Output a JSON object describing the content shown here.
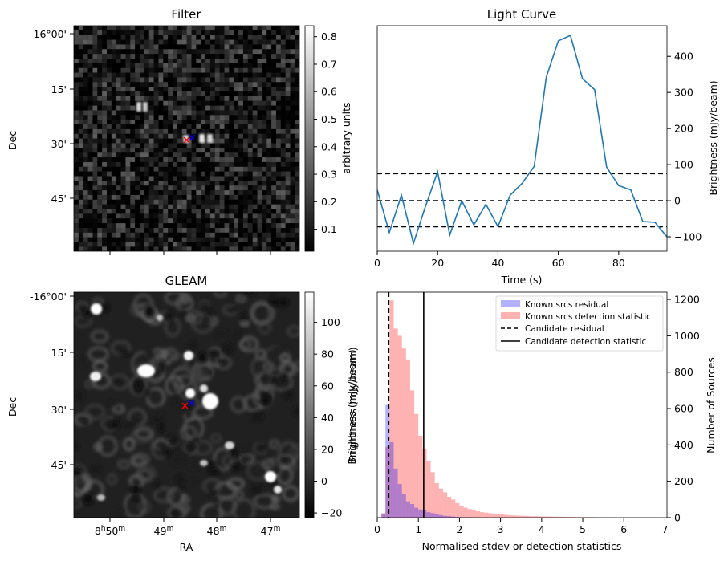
{
  "panels": {
    "filter": {
      "title": "Filter",
      "ylabel": "Dec",
      "dec_ticks": [
        "-16°00'",
        "15'",
        "30'",
        "45'"
      ],
      "colorbar": {
        "label": "arbitrary units",
        "range": [
          0.02,
          0.84
        ],
        "ticks": [
          "0.1",
          "0.2",
          "0.3",
          "0.4",
          "0.5",
          "0.6",
          "0.7",
          "0.8"
        ]
      }
    },
    "gleam": {
      "title": "GLEAM",
      "ylabel": "Dec",
      "xlabel": "RA",
      "dec_ticks": [
        "-16°00'",
        "15'",
        "30'",
        "45'"
      ],
      "ra_ticks": [
        "8h50m",
        "49m",
        "48m",
        "47m"
      ],
      "colorbar": {
        "label": "Brightness (mJy/beam)",
        "range": [
          -23,
          119
        ],
        "ticks": [
          "−20",
          "0",
          "20",
          "40",
          "60",
          "80",
          "100"
        ]
      }
    },
    "marker_colors": {
      "red_x": "#ff0000",
      "blue_x": "#0000ff"
    }
  },
  "chart_data": [
    {
      "type": "line",
      "title": "Light Curve",
      "xlabel": "Time (s)",
      "ylabel": "Brightness (mJy/beam)",
      "xlim": [
        0,
        96
      ],
      "ylim": [
        -140,
        485
      ],
      "xticks": [
        0,
        20,
        40,
        60,
        80
      ],
      "yticks": [
        -100,
        0,
        100,
        200,
        300,
        400
      ],
      "y_axis_side": "right",
      "color": "#1f77b4",
      "x": [
        0,
        4,
        8,
        12,
        16,
        20,
        24,
        28,
        32,
        36,
        40,
        44,
        48,
        52,
        56,
        60,
        64,
        68,
        72,
        76,
        80,
        84,
        88,
        92,
        96
      ],
      "y": [
        30,
        -88,
        15,
        -118,
        -15,
        80,
        -95,
        0,
        -67,
        -10,
        -72,
        15,
        48,
        95,
        342,
        443,
        458,
        338,
        308,
        93,
        42,
        30,
        -58,
        -60,
        -100
      ],
      "hlines": [
        {
          "y": 75,
          "style": "dashed",
          "color": "#000000"
        },
        {
          "y": 0,
          "style": "dashed",
          "color": "#000000"
        },
        {
          "y": -72,
          "style": "dashed",
          "color": "#000000"
        }
      ]
    },
    {
      "type": "bar",
      "subtype": "histogram",
      "xlabel": "Normalised stdev or detection statistics",
      "ylabel": "Number of Sources",
      "left_ylabel": "Brightness (mJy/beam)",
      "xlim": [
        0,
        7.05
      ],
      "ylim": [
        0,
        1240
      ],
      "xticks": [
        0,
        1,
        2,
        3,
        4,
        5,
        6,
        7
      ],
      "yticks": [
        0,
        200,
        400,
        600,
        800,
        1000,
        1200
      ],
      "y_axis_side": "right",
      "bin_width": 0.1,
      "legend_position": "top-right",
      "series": [
        {
          "name": "Known srcs residual",
          "color": "#0000ff",
          "opacity": 0.3,
          "bin_start": 0,
          "values": [
            0,
            20,
            620,
            415,
            270,
            185,
            130,
            90,
            75,
            55,
            45,
            40,
            30,
            25,
            18,
            14,
            10,
            8,
            6,
            4,
            3,
            2,
            2,
            1,
            1
          ]
        },
        {
          "name": "Known srcs detection statistic",
          "color": "#ff0000",
          "opacity": 0.3,
          "bin_start": 0,
          "values": [
            0,
            25,
            390,
            1195,
            1040,
            1000,
            930,
            870,
            700,
            570,
            450,
            380,
            310,
            250,
            190,
            160,
            140,
            115,
            100,
            80,
            65,
            55,
            48,
            40,
            35,
            30,
            28,
            25,
            20,
            20,
            18,
            15,
            13,
            12,
            11,
            10,
            9,
            8,
            8,
            7,
            7,
            6,
            6,
            5,
            5,
            5,
            4,
            4,
            3,
            3,
            3,
            3,
            3,
            2,
            2,
            2,
            2,
            2,
            1,
            1,
            1,
            1,
            1,
            1,
            1,
            1,
            1,
            1,
            0,
            1
          ]
        }
      ],
      "vlines": [
        {
          "name": "Candidate residual",
          "x": 0.28,
          "style": "dashed",
          "color": "#000000"
        },
        {
          "name": "Candidate detection statistic",
          "x": 1.13,
          "style": "solid",
          "color": "#000000"
        }
      ]
    }
  ]
}
